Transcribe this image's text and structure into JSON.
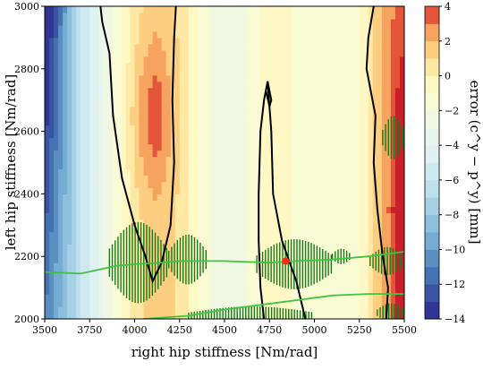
{
  "chart_data": {
    "type": "heatmap",
    "title": "",
    "xlabel": "right hip stiffness [Nm/rad]",
    "ylabel": "left hip stiffness [Nm/rad]",
    "xlim": [
      3500,
      5500
    ],
    "ylim": [
      2000,
      3000
    ],
    "xticks": [
      "3500",
      "3750",
      "4000",
      "4250",
      "4500",
      "4750",
      "5000",
      "5250",
      "5500"
    ],
    "yticks": [
      "2000",
      "2200",
      "2400",
      "2600",
      "2800",
      "3000"
    ],
    "colorbar": {
      "label": "error (c^y − p^y) [mm]",
      "ticks": [
        "4",
        "2",
        "0",
        "−2",
        "−4",
        "−6",
        "−8",
        "−10",
        "−12",
        "−14"
      ],
      "range": [
        -14,
        4
      ],
      "levels": [
        {
          "from": -14,
          "to": -13,
          "color": "#313695"
        },
        {
          "from": -13,
          "to": -12,
          "color": "#3a54a4"
        },
        {
          "from": -12,
          "to": -11,
          "color": "#4472b2"
        },
        {
          "from": -11,
          "to": -10,
          "color": "#5b8fc1"
        },
        {
          "from": -10,
          "to": -9,
          "color": "#74add1"
        },
        {
          "from": -9,
          "to": -8,
          "color": "#8ebfdc"
        },
        {
          "from": -8,
          "to": -7,
          "color": "#a6d0e4"
        },
        {
          "from": -7,
          "to": -6,
          "color": "#bde0ec"
        },
        {
          "from": -6,
          "to": -5,
          "color": "#cfe9f1"
        },
        {
          "from": -5,
          "to": -4,
          "color": "#dff1f2"
        },
        {
          "from": -4,
          "to": -3,
          "color": "#e8f5ef"
        },
        {
          "from": -3,
          "to": -2,
          "color": "#f0f8e4"
        },
        {
          "from": -2,
          "to": -1,
          "color": "#f8fbd4"
        },
        {
          "from": -1,
          "to": 0,
          "color": "#fef8c4"
        },
        {
          "from": 0,
          "to": 1,
          "color": "#fee9a4"
        },
        {
          "from": 1,
          "to": 2,
          "color": "#fdcd80"
        },
        {
          "from": 2,
          "to": 3,
          "color": "#f5a35e"
        },
        {
          "from": 3,
          "to": 4,
          "color": "#e4553b"
        },
        {
          "from": 4,
          "to": 5,
          "color": "#c8202a"
        }
      ]
    },
    "red_marker": {
      "x": 4840,
      "y": 2185,
      "color": "#ff2b14"
    },
    "green_lines": [
      {
        "points": [
          [
            3500,
            2150
          ],
          [
            3700,
            2145
          ],
          [
            3900,
            2170
          ],
          [
            4000,
            2175
          ],
          [
            4150,
            2180
          ],
          [
            4250,
            2185
          ],
          [
            4500,
            2185
          ],
          [
            4750,
            2180
          ],
          [
            4900,
            2185
          ],
          [
            5100,
            2190
          ],
          [
            5300,
            2200
          ],
          [
            5500,
            2215
          ]
        ]
      },
      {
        "points": [
          [
            4050,
            2000
          ],
          [
            4300,
            2010
          ],
          [
            4500,
            2030
          ],
          [
            4700,
            2045
          ],
          [
            4900,
            2060
          ],
          [
            5100,
            2075
          ],
          [
            5300,
            2080
          ],
          [
            5500,
            2080
          ]
        ]
      }
    ],
    "hatch_regions": [
      {
        "x": [
          3860,
          4180
        ],
        "y_center": 2180,
        "half_height_max": 130
      },
      {
        "x": [
          4190,
          4400
        ],
        "y_center": 2190,
        "half_height_max": 80
      },
      {
        "x": [
          4680,
          5100
        ],
        "y_center": 2175,
        "half_height_max": 80
      },
      {
        "x": [
          5100,
          5200
        ],
        "y_center": 2200,
        "half_height_max": 25
      },
      {
        "x": [
          5310,
          5500
        ],
        "y_center": 2185,
        "half_height_max": 45
      },
      {
        "x": [
          4300,
          5000
        ],
        "y_center": 2010,
        "half_height_max": 30
      },
      {
        "x": [
          5350,
          5500
        ],
        "y_center": 2020,
        "half_height_max": 30
      },
      {
        "x": [
          5380,
          5500
        ],
        "y_center": 2580,
        "half_height_max": 70
      }
    ],
    "hatch_color": "#1a7a1a",
    "green_line_color": "#3ec43e",
    "contour_color": "#000000",
    "black_contours": [
      {
        "points": [
          [
            3810,
            3000
          ],
          [
            3820,
            2950
          ],
          [
            3860,
            2850
          ],
          [
            3880,
            2650
          ],
          [
            3930,
            2450
          ],
          [
            4000,
            2300
          ],
          [
            4060,
            2200
          ],
          [
            4100,
            2120
          ],
          [
            4150,
            2180
          ],
          [
            4200,
            2300
          ],
          [
            4220,
            2500
          ],
          [
            4210,
            2700
          ],
          [
            4220,
            2900
          ],
          [
            4230,
            3000
          ]
        ]
      },
      {
        "points": [
          [
            4720,
            2000
          ],
          [
            4700,
            2100
          ],
          [
            4690,
            2250
          ],
          [
            4690,
            2400
          ],
          [
            4700,
            2600
          ],
          [
            4720,
            2700
          ],
          [
            4740,
            2760
          ],
          [
            4760,
            2600
          ],
          [
            4770,
            2400
          ],
          [
            4820,
            2250
          ],
          [
            4900,
            2120
          ],
          [
            4950,
            2000
          ]
        ]
      },
      {
        "points": [
          [
            4730,
            2730
          ],
          [
            4750,
            2680
          ],
          [
            4760,
            2700
          ],
          [
            4740,
            2760
          ]
        ]
      },
      {
        "points": [
          [
            5330,
            3000
          ],
          [
            5300,
            2900
          ],
          [
            5290,
            2800
          ],
          [
            5340,
            2650
          ],
          [
            5330,
            2500
          ],
          [
            5350,
            2350
          ],
          [
            5380,
            2200
          ],
          [
            5410,
            2100
          ],
          [
            5400,
            2000
          ]
        ]
      }
    ],
    "field": {
      "description_columns_x": [
        3500,
        3625,
        3750,
        3875,
        4000,
        4125,
        4250,
        4375,
        4500,
        4625,
        4750,
        4875,
        5000,
        5125,
        5250,
        5375,
        5500
      ],
      "base_profile": [
        -11,
        -8,
        -5,
        -2,
        0.5,
        1.5,
        0.8,
        -1.5,
        -3,
        -2,
        -0.5,
        -1,
        -1.5,
        -2,
        -1,
        2,
        3
      ]
    }
  }
}
